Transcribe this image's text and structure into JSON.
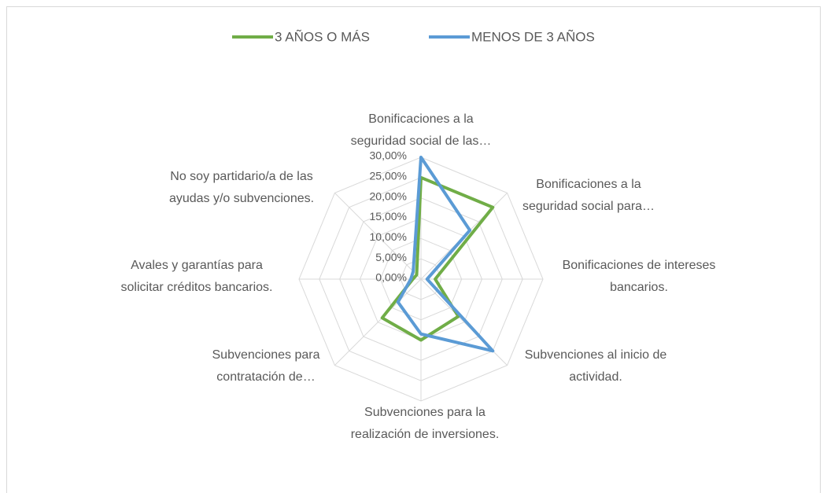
{
  "chart_data": {
    "type": "radar",
    "categories": [
      "Bonificaciones a la\nseguridad social de las…",
      "Bonificaciones a la\nseguridad social para…",
      "Bonificaciones de intereses\nbancarios.",
      "Subvenciones al inicio de\nactividad.",
      "Subvenciones para la\nrealización de inversiones.",
      "Subvenciones para\ncontratación de…",
      "Avales y garantías para\nsolicitar créditos bancarios.",
      "No soy partidario/a de las\nayudas y/o subvenciones."
    ],
    "series": [
      {
        "name": "3 AÑOS O MÁS",
        "color": "#70ad47",
        "values": [
          25,
          25,
          3.5,
          13,
          15,
          13.5,
          2,
          1.5
        ]
      },
      {
        "name": "MENOS DE 3 AÑOS",
        "color": "#5b9bd5",
        "values": [
          30,
          17,
          1.5,
          25,
          13.5,
          8,
          2.5,
          2.7
        ]
      }
    ],
    "ylim": [
      0,
      30
    ],
    "yticks": [
      {
        "value": 0,
        "label": "0,00%"
      },
      {
        "value": 5,
        "label": "5,00%"
      },
      {
        "value": 10,
        "label": "10,00%"
      },
      {
        "value": 15,
        "label": "15,00%"
      },
      {
        "value": 20,
        "label": "20,00%"
      },
      {
        "value": 25,
        "label": "25,00%"
      },
      {
        "value": 30,
        "label": "30,00%"
      }
    ],
    "grid": true,
    "legend": "top"
  }
}
